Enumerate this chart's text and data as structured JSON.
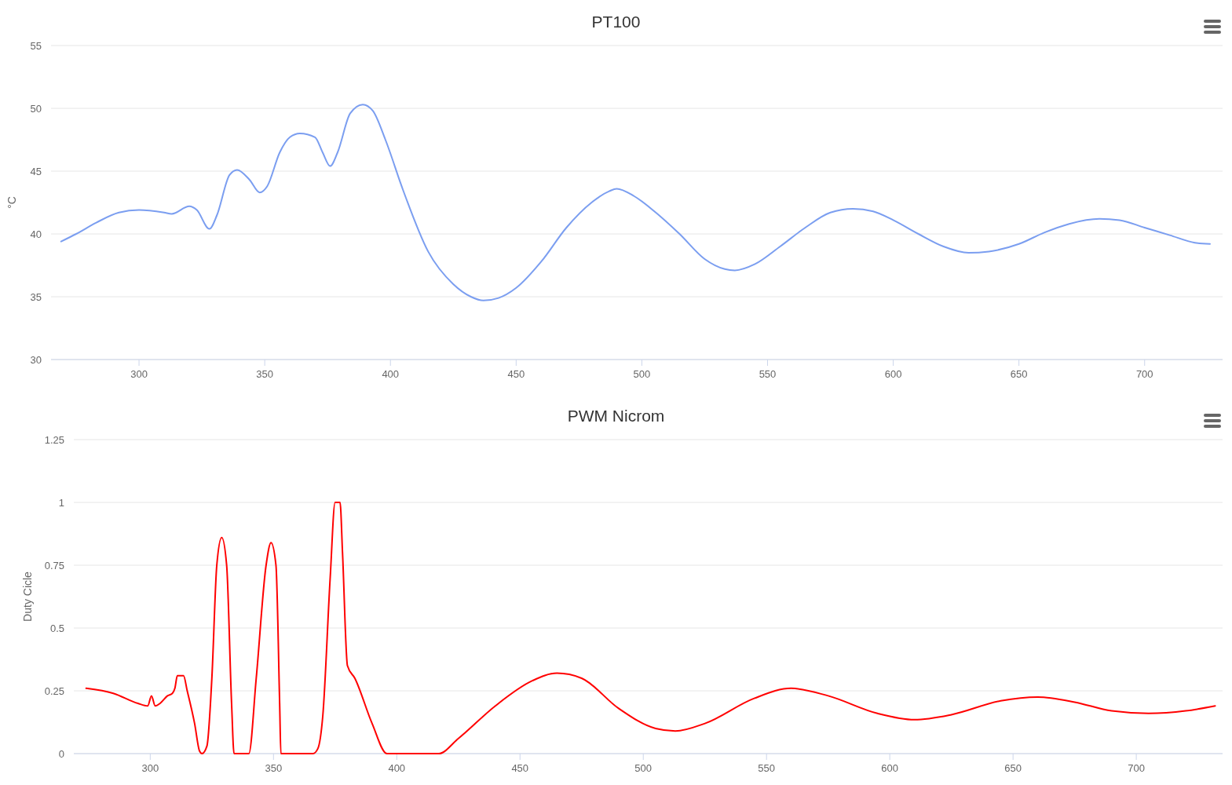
{
  "chart_data": [
    {
      "type": "line",
      "title": "PT100",
      "ylabel": "°C",
      "grid": "y",
      "xlim": [
        265,
        731
      ],
      "ylim": [
        30,
        55
      ],
      "xticks": [
        300,
        350,
        400,
        450,
        500,
        550,
        600,
        650,
        700
      ],
      "yticks": [
        30,
        35,
        40,
        45,
        50,
        55
      ],
      "series": [
        {
          "color": "#7b9ef0",
          "x": [
            269,
            275,
            283,
            292,
            300,
            310,
            313,
            320,
            323,
            328,
            331,
            336,
            339,
            344,
            348,
            351,
            356,
            360,
            364,
            370,
            373,
            376,
            379,
            384,
            389,
            393,
            398,
            405,
            415,
            425,
            432,
            437,
            443,
            450,
            460,
            470,
            480,
            487,
            490,
            497,
            505,
            515,
            525,
            533,
            537,
            545,
            555,
            565,
            575,
            584,
            592,
            600,
            610,
            620,
            630,
            638,
            650,
            660,
            670,
            682,
            690,
            700,
            710,
            720,
            726
          ],
          "values": [
            39.4,
            40.0,
            40.9,
            41.7,
            41.9,
            41.7,
            41.6,
            42.2,
            41.9,
            40.4,
            41.5,
            44.7,
            45.1,
            44.3,
            43.3,
            43.8,
            46.5,
            47.7,
            48.0,
            47.7,
            46.5,
            45.4,
            46.5,
            49.6,
            50.3,
            49.8,
            47.5,
            43.5,
            38.6,
            36.0,
            35.0,
            34.7,
            34.9,
            35.7,
            37.8,
            40.5,
            42.5,
            43.4,
            43.6,
            43.0,
            41.8,
            40.0,
            38.0,
            37.2,
            37.1,
            37.6,
            39.0,
            40.5,
            41.7,
            42.0,
            41.8,
            41.1,
            40.0,
            39.0,
            38.5,
            38.6,
            39.2,
            40.1,
            40.8,
            41.2,
            41.1,
            40.5,
            39.9,
            39.3,
            39.2
          ]
        }
      ]
    },
    {
      "type": "line",
      "title": "PWM Nicrom",
      "ylabel": "Duty Cicle",
      "grid": "y",
      "xlim": [
        269,
        735
      ],
      "ylim": [
        0,
        1.25
      ],
      "xticks": [
        300,
        350,
        400,
        450,
        500,
        550,
        600,
        650,
        700
      ],
      "yticks": [
        0,
        0.25,
        0.5,
        0.75,
        1,
        1.25
      ],
      "series": [
        {
          "color": "#ff0000",
          "x": [
            274,
            285,
            295,
            299,
            300.5,
            302,
            304,
            307,
            309,
            310,
            311,
            313.5,
            315,
            318,
            320,
            321,
            323,
            325,
            327,
            329,
            331,
            333,
            334,
            340,
            343,
            347,
            349,
            351,
            352.5,
            353,
            366,
            368,
            370,
            373,
            375,
            377,
            378,
            380,
            383,
            390,
            396,
            417,
            425,
            440,
            455,
            465,
            475,
            490,
            505,
            513,
            525,
            545,
            560,
            575,
            595,
            610,
            625,
            645,
            660,
            675,
            690,
            705,
            720,
            732
          ],
          "values": [
            0.26,
            0.24,
            0.2,
            0.19,
            0.23,
            0.19,
            0.2,
            0.23,
            0.24,
            0.26,
            0.31,
            0.31,
            0.25,
            0.12,
            0.01,
            0,
            0.03,
            0.3,
            0.75,
            0.86,
            0.75,
            0.2,
            0,
            0,
            0.3,
            0.75,
            0.84,
            0.75,
            0.2,
            0,
            0,
            0.02,
            0.15,
            0.7,
            1,
            1,
            0.8,
            0.35,
            0.3,
            0.12,
            0,
            0,
            0.06,
            0.19,
            0.29,
            0.32,
            0.3,
            0.18,
            0.1,
            0.09,
            0.12,
            0.22,
            0.26,
            0.23,
            0.16,
            0.135,
            0.155,
            0.21,
            0.225,
            0.205,
            0.17,
            0.16,
            0.17,
            0.19
          ]
        }
      ]
    }
  ]
}
